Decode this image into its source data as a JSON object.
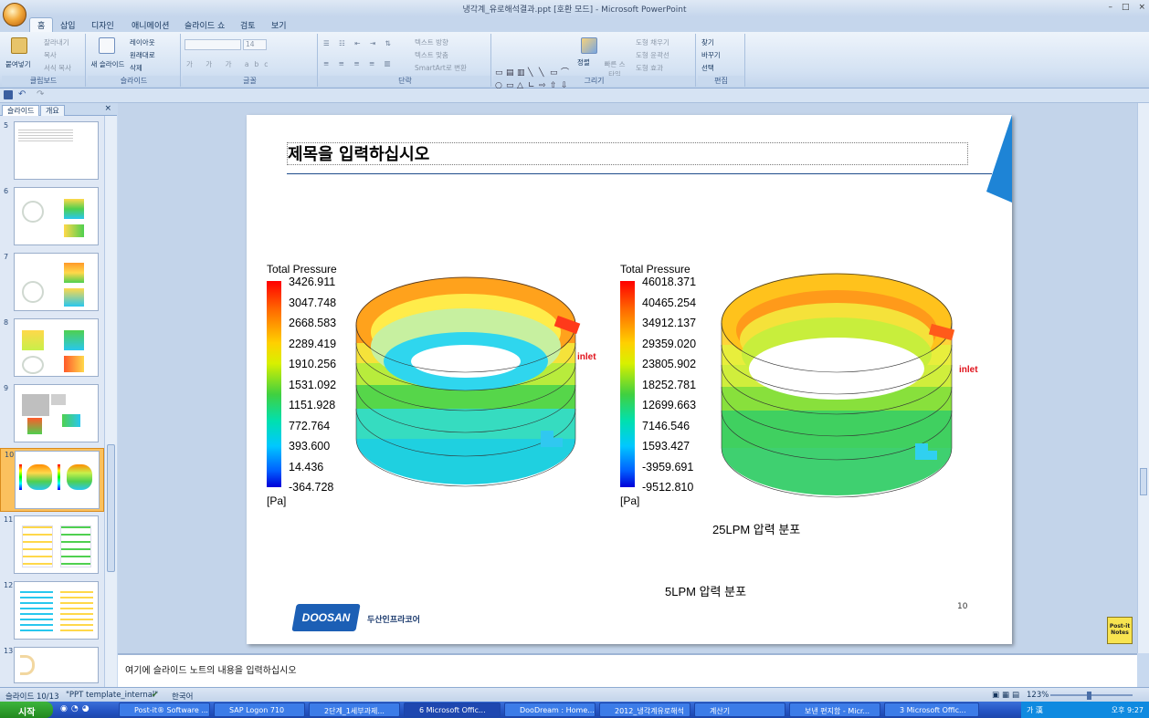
{
  "window": {
    "title": "냉각계_유로해석결과.ppt [호환 모드] - Microsoft PowerPoint",
    "controls": [
      "–",
      "□",
      "×"
    ]
  },
  "ribbon_tabs": [
    "홈",
    "삽입",
    "디자인",
    "애니메이션",
    "슬라이드 쇼",
    "검토",
    "보기"
  ],
  "ribbon": {
    "clipboard": {
      "label": "클립보드",
      "paste": "붙여넣기",
      "cut": "잘라내기",
      "copy": "복사",
      "format_painter": "서식 복사"
    },
    "slides": {
      "label": "슬라이드",
      "new_slide": "새 슬라이드",
      "layout": "레이아웃",
      "reset": "원래대로",
      "delete": "삭제"
    },
    "font": {
      "label": "글꼴",
      "size": "14"
    },
    "paragraph": {
      "label": "단락",
      "text_direction": "텍스트 방향",
      "align_text": "텍스트 맞춤",
      "smartart": "SmartArt로 변환"
    },
    "drawing": {
      "label": "그리기",
      "arrange": "정렬",
      "quick_styles": "빠른 스타일",
      "fill": "도형 채우기",
      "outline": "도형 윤곽선",
      "effects": "도형 효과"
    },
    "editing": {
      "label": "편집",
      "find": "찾기",
      "replace": "바꾸기",
      "select": "선택"
    }
  },
  "left_pane": {
    "tabs": [
      "슬라이드",
      "개요"
    ],
    "close": "×",
    "slides": [
      {
        "num": "5"
      },
      {
        "num": "6"
      },
      {
        "num": "7"
      },
      {
        "num": "8"
      },
      {
        "num": "9"
      },
      {
        "num": "10",
        "selected": true
      },
      {
        "num": "11"
      },
      {
        "num": "12"
      },
      {
        "num": "13"
      }
    ]
  },
  "slide": {
    "title": "제목을 입력하십시오",
    "page_number": "10",
    "logo": "DOOSAN",
    "company": "두산인프라코어",
    "left_plot": {
      "legend_title": "Total Pressure",
      "unit": "[Pa]",
      "ticks": [
        "3426.911",
        "3047.748",
        "2668.583",
        "2289.419",
        "1910.256",
        "1531.092",
        "1151.928",
        "772.764",
        "393.600",
        "14.436",
        "-364.728"
      ],
      "inlet_label": "inlet",
      "caption": "5LPM 압력 분포"
    },
    "right_plot": {
      "legend_title": "Total Pressure",
      "unit": "[Pa]",
      "ticks": [
        "46018.371",
        "40465.254",
        "34912.137",
        "29359.020",
        "23805.902",
        "18252.781",
        "12699.663",
        "7146.546",
        "1593.427",
        "-3959.691",
        "-9512.810"
      ],
      "inlet_label": "inlet",
      "caption": "25LPM 압력 분포"
    }
  },
  "notes_placeholder": "여기에 슬라이드 노트의 내용을 입력하십시오",
  "status_bar": {
    "slide": "슬라이드 10/13",
    "theme": "\"PPT template_internal\"",
    "language": "한국어",
    "zoom": "123%"
  },
  "postit_label": "Post-it Notes",
  "taskbar": {
    "start": "시작",
    "items": [
      "Post-it® Software ...",
      "SAP Logon 710",
      "2단계_1세부과제...",
      "6 Microsoft Offic...",
      "DooDream : Home...",
      "2012_냉각계유로해석",
      "계산기",
      "보낸 편지함 - Micr...",
      "3 Microsoft Offic..."
    ],
    "active_index": 3,
    "tray_lang": "가 漢",
    "clock": "오후 9:27"
  }
}
